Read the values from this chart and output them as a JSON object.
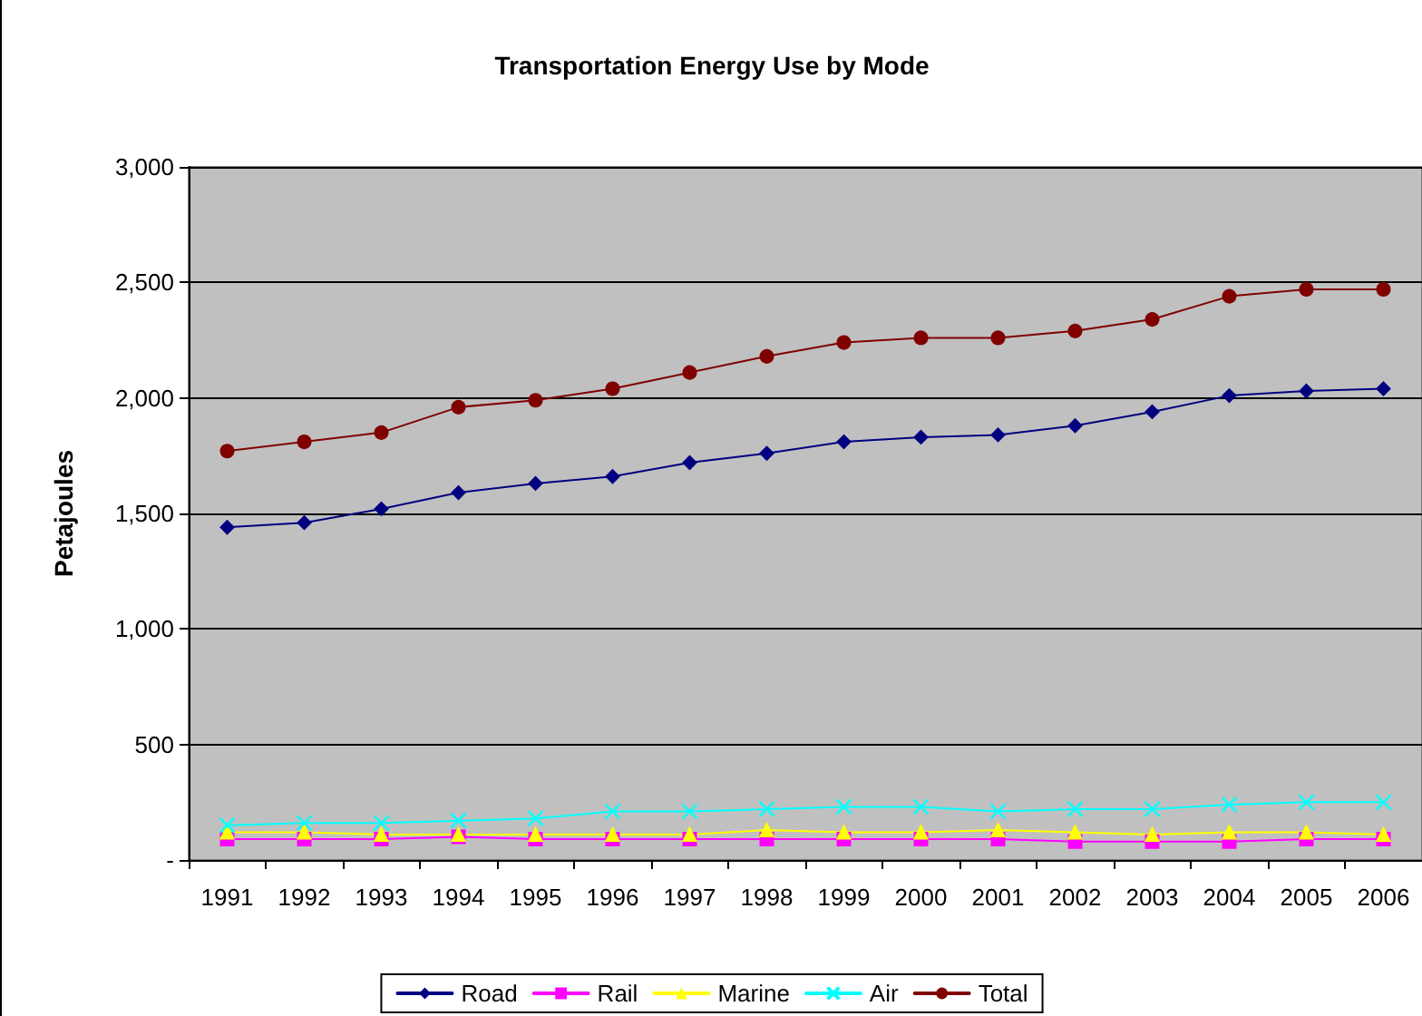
{
  "chart_data": {
    "type": "line",
    "title": "Transportation Energy Use by Mode",
    "ylabel": "Petajoules",
    "categories": [
      "1991",
      "1992",
      "1993",
      "1994",
      "1995",
      "1996",
      "1997",
      "1998",
      "1999",
      "2000",
      "2001",
      "2002",
      "2003",
      "2004",
      "2005",
      "2006"
    ],
    "series": [
      {
        "name": "Road",
        "color": "#000080",
        "marker": "diamond",
        "values": [
          1440,
          1460,
          1520,
          1590,
          1630,
          1660,
          1720,
          1760,
          1810,
          1830,
          1840,
          1880,
          1940,
          2010,
          2030,
          2040
        ]
      },
      {
        "name": "Rail",
        "color": "#ff00ff",
        "marker": "square",
        "values": [
          90,
          90,
          90,
          100,
          90,
          90,
          90,
          90,
          90,
          90,
          90,
          80,
          80,
          80,
          90,
          90
        ]
      },
      {
        "name": "Marine",
        "color": "#ffff00",
        "marker": "triangle",
        "values": [
          120,
          120,
          110,
          110,
          110,
          110,
          110,
          130,
          120,
          120,
          130,
          120,
          110,
          120,
          120,
          110
        ]
      },
      {
        "name": "Air",
        "color": "#00ffff",
        "marker": "cross",
        "values": [
          150,
          160,
          160,
          170,
          180,
          210,
          210,
          220,
          230,
          230,
          210,
          220,
          220,
          240,
          250,
          250
        ]
      },
      {
        "name": "Total",
        "color": "#800000",
        "marker": "circle",
        "values": [
          1770,
          1810,
          1850,
          1960,
          1990,
          2040,
          2110,
          2180,
          2240,
          2260,
          2260,
          2290,
          2340,
          2440,
          2470,
          2470
        ]
      }
    ],
    "ylim": [
      0,
      3000
    ],
    "yticks": [
      {
        "value": 0,
        "label": "-"
      },
      {
        "value": 500,
        "label": "500"
      },
      {
        "value": 1000,
        "label": "1,000"
      },
      {
        "value": 1500,
        "label": "1,500"
      },
      {
        "value": 2000,
        "label": "2,000"
      },
      {
        "value": 2500,
        "label": "2,500"
      },
      {
        "value": 3000,
        "label": "3,000"
      }
    ],
    "grid": "y",
    "legend": "bottom"
  }
}
